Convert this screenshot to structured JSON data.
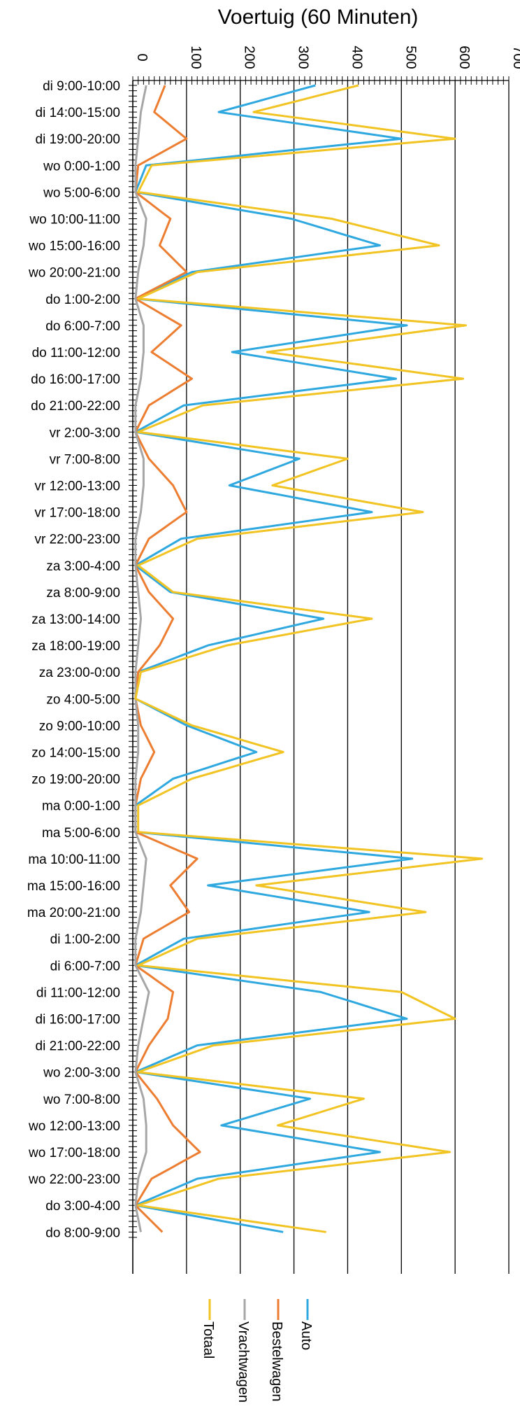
{
  "chart_data": {
    "type": "line",
    "orientation": "vertical",
    "title": "Voertuig (60 Minuten)",
    "xlabel": "",
    "ylabel": "",
    "value_axis": {
      "min": 0,
      "max": 700,
      "ticks": [
        0,
        100,
        200,
        300,
        400,
        500,
        600,
        700
      ],
      "grid": true
    },
    "category_step_hours": 5,
    "categories": [
      "di 9:00-10:00",
      "di 14:00-15:00",
      "di 19:00-20:00",
      "wo 0:00-1:00",
      "wo 5:00-6:00",
      "wo 10:00-11:00",
      "wo 15:00-16:00",
      "wo 20:00-21:00",
      "do 1:00-2:00",
      "do 6:00-7:00",
      "do 11:00-12:00",
      "do 16:00-17:00",
      "do 21:00-22:00",
      "vr 2:00-3:00",
      "vr 7:00-8:00",
      "vr 12:00-13:00",
      "vr 17:00-18:00",
      "vr 22:00-23:00",
      "za 3:00-4:00",
      "za 8:00-9:00",
      "za 13:00-14:00",
      "za 18:00-19:00",
      "za 23:00-0:00",
      "zo 4:00-5:00",
      "zo 9:00-10:00",
      "zo 14:00-15:00",
      "zo 19:00-20:00",
      "ma 0:00-1:00",
      "ma 5:00-6:00",
      "ma 10:00-11:00",
      "ma 15:00-16:00",
      "ma 20:00-21:00",
      "di 1:00-2:00",
      "di 6:00-7:00",
      "di 11:00-12:00",
      "di 16:00-17:00",
      "di 21:00-22:00",
      "wo 2:00-3:00",
      "wo 7:00-8:00",
      "wo 12:00-13:00",
      "wo 17:00-18:00",
      "wo 22:00-23:00",
      "do 3:00-4:00",
      "do 8:00-9:00"
    ],
    "legend_position": "bottom",
    "series": [
      {
        "name": "Auto",
        "color": "#2EA8DF",
        "values": [
          340,
          160,
          500,
          25,
          5,
          295,
          460,
          110,
          5,
          510,
          185,
          490,
          95,
          5,
          310,
          180,
          445,
          90,
          5,
          70,
          355,
          140,
          10,
          5,
          100,
          230,
          75,
          5,
          5,
          520,
          140,
          440,
          95,
          5,
          350,
          510,
          120,
          5,
          330,
          165,
          460,
          120,
          5,
          280
        ]
      },
      {
        "name": "Bestelwagen",
        "color": "#EC7D31",
        "values": [
          60,
          40,
          100,
          10,
          5,
          70,
          50,
          100,
          5,
          90,
          35,
          110,
          30,
          5,
          30,
          75,
          100,
          30,
          5,
          30,
          75,
          50,
          10,
          5,
          15,
          40,
          15,
          5,
          5,
          120,
          70,
          105,
          20,
          5,
          75,
          65,
          30,
          5,
          45,
          75,
          125,
          35,
          5,
          55
        ]
      },
      {
        "name": "Vrachtwagen",
        "color": "#A6A6A6",
        "values": [
          25,
          15,
          10,
          5,
          5,
          25,
          20,
          10,
          5,
          20,
          20,
          15,
          5,
          5,
          20,
          20,
          15,
          5,
          5,
          10,
          15,
          10,
          5,
          5,
          10,
          10,
          5,
          5,
          5,
          25,
          20,
          15,
          5,
          5,
          30,
          20,
          10,
          5,
          20,
          25,
          25,
          10,
          5,
          15
        ]
      },
      {
        "name": "Totaal",
        "color": "#F2C423",
        "values": [
          420,
          225,
          600,
          35,
          10,
          370,
          570,
          120,
          10,
          620,
          250,
          615,
          130,
          10,
          400,
          260,
          540,
          120,
          10,
          75,
          445,
          175,
          15,
          5,
          110,
          280,
          110,
          10,
          10,
          650,
          230,
          545,
          120,
          10,
          500,
          600,
          150,
          10,
          430,
          270,
          590,
          160,
          10,
          360
        ]
      }
    ]
  }
}
